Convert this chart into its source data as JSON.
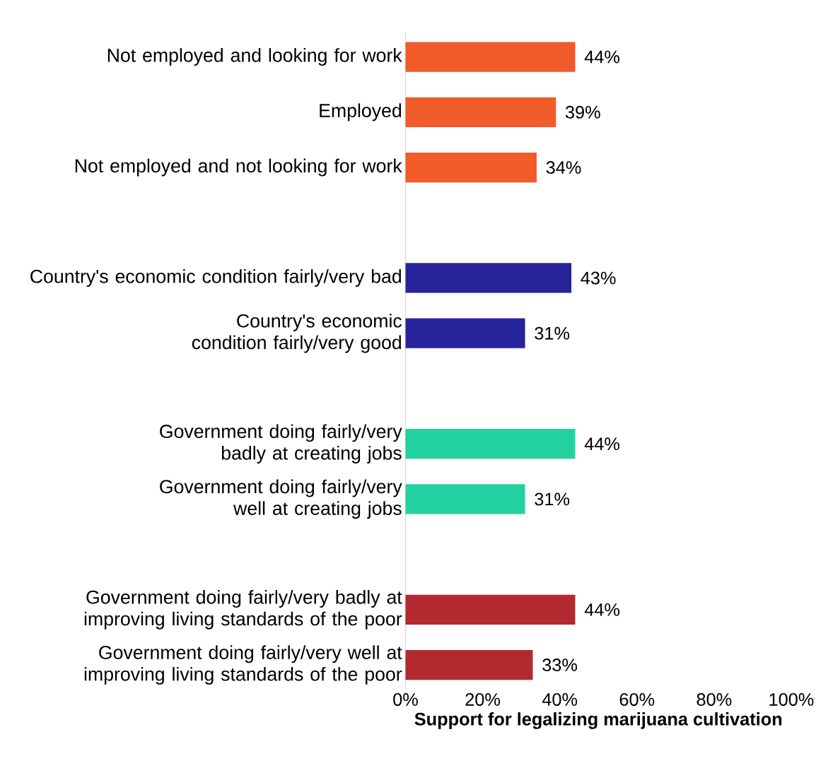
{
  "chart_data": {
    "type": "bar",
    "orientation": "horizontal",
    "xlabel": "Support for legalizing marijuana cultivation",
    "categories": [
      "Not employed and looking for work",
      "Employed",
      "Not employed and not looking for work",
      null,
      "Country's economic condition fairly/very bad",
      "Country's economic condition fairly/very good",
      null,
      "Government doing fairly/very badly at creating jobs",
      "Government doing fairly/very well at creating jobs",
      null,
      "Government doing fairly/very badly at improving living standards of the poor",
      "Government doing fairly/very well at improving living standards of the poor"
    ],
    "values": [
      44,
      39,
      34,
      null,
      43,
      31,
      null,
      44,
      31,
      null,
      44,
      33
    ],
    "value_labels": [
      "44%",
      "39%",
      "34%",
      null,
      "43%",
      "31%",
      null,
      "44%",
      "31%",
      null,
      "44%",
      "33%"
    ],
    "colors": [
      "#f15a29",
      "#f15a29",
      "#f15a29",
      null,
      "#27249b",
      "#27249b",
      null,
      "#23d1a0",
      "#23d1a0",
      null,
      "#b22a30",
      "#b22a30"
    ],
    "xlim": [
      0,
      100
    ],
    "xticks": [
      {
        "value": 0,
        "label": "0%"
      },
      {
        "value": 20,
        "label": "20%"
      },
      {
        "value": 40,
        "label": "40%"
      },
      {
        "value": 60,
        "label": "60%"
      },
      {
        "value": 80,
        "label": "80%"
      },
      {
        "value": 100,
        "label": "100%"
      }
    ],
    "grid": false
  }
}
